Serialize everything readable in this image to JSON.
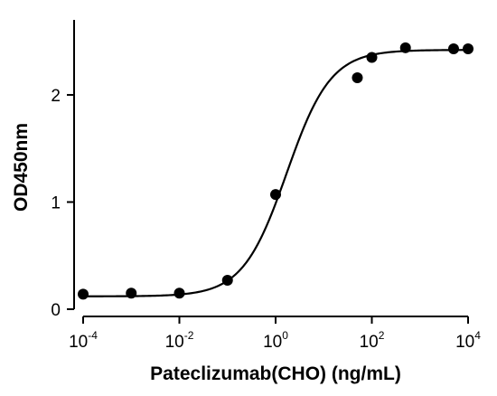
{
  "chart_data": {
    "type": "scatter",
    "title": "",
    "xlabel": "Pateclizumab(CHO) (ng/mL)",
    "ylabel": "OD450nm",
    "x_scale": "log",
    "xlim": [
      0.0001,
      10000
    ],
    "ylim": [
      0,
      2.7
    ],
    "x_ticks": [
      {
        "base": "10",
        "exp": "-4",
        "value": 0.0001
      },
      {
        "base": "10",
        "exp": "-2",
        "value": 0.01
      },
      {
        "base": "10",
        "exp": "0",
        "value": 1
      },
      {
        "base": "10",
        "exp": "2",
        "value": 100
      },
      {
        "base": "10",
        "exp": "4",
        "value": 10000
      }
    ],
    "y_ticks": [
      {
        "label": "0",
        "value": 0
      },
      {
        "label": "1",
        "value": 1
      },
      {
        "label": "2",
        "value": 2
      }
    ],
    "grid": false,
    "legend": "none",
    "color": "#000000",
    "series": [
      {
        "marker": "circle",
        "points": [
          {
            "x": 0.0001,
            "y": 0.14
          },
          {
            "x": 0.001,
            "y": 0.15
          },
          {
            "x": 0.01,
            "y": 0.15
          },
          {
            "x": 0.1,
            "y": 0.27
          },
          {
            "x": 1,
            "y": 1.07
          },
          {
            "x": 50,
            "y": 2.16
          },
          {
            "x": 100,
            "y": 2.35
          },
          {
            "x": 500,
            "y": 2.44
          },
          {
            "x": 5000,
            "y": 2.43
          },
          {
            "x": 10000,
            "y": 2.43
          }
        ]
      }
    ],
    "fit": {
      "type": "4PL",
      "bottom": 0.12,
      "top": 2.42,
      "ec50": 1.7,
      "hill": 0.95
    }
  }
}
